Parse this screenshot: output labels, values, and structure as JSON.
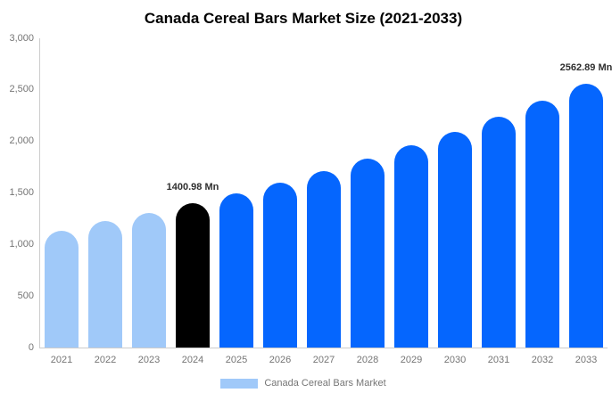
{
  "chart_data": {
    "type": "bar",
    "title": "Canada Cereal Bars Market Size (2021-2033)",
    "legend": "Canada Cereal Bars Market",
    "unit": "Mn",
    "categories": [
      "2021",
      "2022",
      "2023",
      "2024",
      "2025",
      "2026",
      "2027",
      "2028",
      "2029",
      "2030",
      "2031",
      "2032",
      "2033"
    ],
    "values": [
      1133,
      1224,
      1303,
      1400.98,
      1498,
      1602,
      1714,
      1832,
      1960,
      2096,
      2241,
      2397,
      2562.89
    ],
    "bar_groups": [
      "historical",
      "historical",
      "historical",
      "highlight",
      "forecast",
      "forecast",
      "forecast",
      "forecast",
      "forecast",
      "forecast",
      "forecast",
      "forecast",
      "forecast"
    ],
    "annotations": [
      {
        "category": "2024",
        "text": "1400.98 Mn"
      },
      {
        "category": "2033",
        "text": "2562.89 Mn"
      }
    ],
    "ylim": [
      0,
      3000
    ],
    "yticks": [
      {
        "label": "3,000",
        "value": 3000
      },
      {
        "label": "2,500",
        "value": 2500
      },
      {
        "label": "2,000",
        "value": 2000
      },
      {
        "label": "1,500",
        "value": 1500
      },
      {
        "label": "1,000",
        "value": 1000
      },
      {
        "label": "500",
        "value": 500
      },
      {
        "label": "0",
        "value": 0
      }
    ],
    "colors": {
      "historical": "#a0c9f9",
      "highlight": "#000000",
      "forecast": "#0566fe",
      "axis_line": "#cccccc",
      "tick_text": "#757575",
      "annotation_text": "#2f2f2f"
    },
    "grid": "off",
    "legend_position": "bottom"
  }
}
